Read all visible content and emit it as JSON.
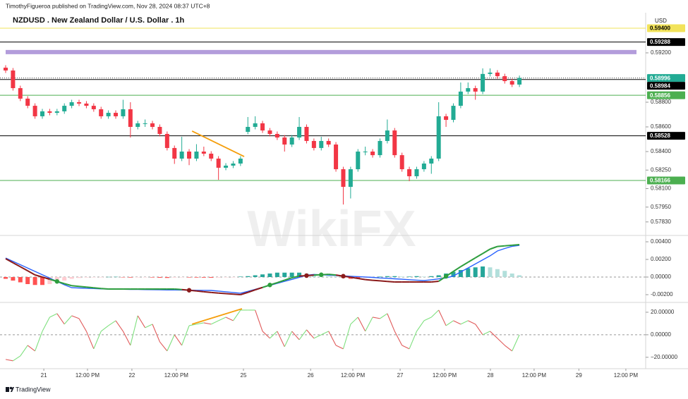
{
  "header": {
    "publisher": "TimothyFigueroa published on TradingView.com, Nov 28, 2024 08:37 UTC+8",
    "symbol": "NZDUSD . New Zealand Dollar / U.S. Dollar . 1h",
    "currency": "USD"
  },
  "footer": {
    "brand": "TradingView"
  },
  "watermark": "WikiFX",
  "chart_data": [
    {
      "type": "candlestick",
      "up_color": "#22ab94",
      "down_color": "#f23645",
      "xlim": [
        -0.77,
        87.2
      ],
      "ylim": [
        0.57726,
        0.59514
      ],
      "yticks": [
        {
          "value": 0.592,
          "label": "0.59200"
        },
        {
          "value": 0.588,
          "label": "0.58800"
        },
        {
          "value": 0.586,
          "label": "0.58600"
        },
        {
          "value": 0.584,
          "label": "0.58400"
        },
        {
          "value": 0.5825,
          "label": "0.58250"
        },
        {
          "value": 0.581,
          "label": "0.58100"
        },
        {
          "value": 0.5795,
          "label": "0.57950"
        },
        {
          "value": 0.5783,
          "label": "0.57830"
        }
      ],
      "levels": [
        {
          "value": 0.594,
          "label": "0.59400",
          "color": "#f2e35a",
          "style": "solid"
        },
        {
          "value": 0.59288,
          "label": "0.59288",
          "color": "#000000",
          "style": "solid"
        },
        {
          "value": 0.59206,
          "color": "#b39ddb",
          "style": "band"
        },
        {
          "value": 0.58996,
          "label": "0.58996",
          "color": "#22ab94",
          "style": "dotted"
        },
        {
          "value": 0.58984,
          "label": "0.58984",
          "color": "#000000",
          "style": "solid"
        },
        {
          "value": 0.58856,
          "label": "0.58856",
          "color": "#4caf50",
          "style": "solid"
        },
        {
          "value": 0.58528,
          "label": "0.58528",
          "color": "#000000",
          "style": "solid"
        },
        {
          "value": 0.58166,
          "label": "0.58166",
          "color": "#4caf50",
          "style": "solid"
        }
      ],
      "trendlines": [
        {
          "start": [
            25.4,
            0.58566
          ],
          "end": [
            32.5,
            0.5836
          ],
          "color": "#f59e0b"
        }
      ],
      "open": [
        0.5908,
        0.59057,
        0.58914,
        0.58829,
        0.58771,
        0.58686,
        0.58726,
        0.58714,
        0.58726,
        0.58771,
        0.588,
        0.58789,
        0.58771,
        0.58743,
        0.58686,
        0.58714,
        0.58686,
        0.58743,
        0.586,
        0.58629,
        0.58629,
        0.586,
        0.58543,
        0.58429,
        0.58343,
        0.584,
        0.58343,
        0.584,
        0.58383,
        0.58343,
        0.58269,
        0.58286,
        0.58303,
        0.5856,
        0.586,
        0.58629,
        0.58571,
        0.58543,
        0.58514,
        0.58457,
        0.58514,
        0.586,
        0.58486,
        0.58429,
        0.58486,
        0.58457,
        0.58257,
        0.58114,
        0.58257,
        0.584,
        0.584,
        0.58371,
        0.58486,
        0.58571,
        0.58371,
        0.58257,
        0.582,
        0.58257,
        0.58303,
        0.58343,
        0.58686,
        0.58657,
        0.58771,
        0.58886,
        0.58914,
        0.58886,
        0.59029,
        0.5904,
        0.59011,
        0.58971,
        0.58943
      ],
      "high": [
        0.591,
        0.59077,
        0.58934,
        0.58849,
        0.58791,
        0.58746,
        0.58746,
        0.58746,
        0.58791,
        0.5882,
        0.5882,
        0.58809,
        0.58791,
        0.58763,
        0.58734,
        0.58734,
        0.5882,
        0.588,
        0.58649,
        0.5866,
        0.58649,
        0.5862,
        0.58563,
        0.58449,
        0.5852,
        0.5842,
        0.5846,
        0.5844,
        0.58403,
        0.58363,
        0.58306,
        0.58323,
        0.58363,
        0.5868,
        0.58686,
        0.58649,
        0.58591,
        0.58563,
        0.58534,
        0.58534,
        0.5868,
        0.5862,
        0.58506,
        0.5852,
        0.58506,
        0.58477,
        0.58277,
        0.58277,
        0.5842,
        0.5844,
        0.5842,
        0.58506,
        0.5866,
        0.58591,
        0.58391,
        0.58277,
        0.58277,
        0.58323,
        0.58363,
        0.588,
        0.58706,
        0.58791,
        0.5896,
        0.5896,
        0.58934,
        0.59074,
        0.59074,
        0.5906,
        0.59031,
        0.58991,
        0.59016
      ],
      "low": [
        0.59037,
        0.58894,
        0.58809,
        0.58751,
        0.58666,
        0.58666,
        0.58694,
        0.58694,
        0.58706,
        0.58751,
        0.58769,
        0.58751,
        0.58723,
        0.58666,
        0.58666,
        0.58666,
        0.58666,
        0.58514,
        0.5858,
        0.586,
        0.5858,
        0.58523,
        0.58409,
        0.583,
        0.58323,
        0.5829,
        0.58323,
        0.58363,
        0.58323,
        0.58171,
        0.58249,
        0.58266,
        0.58283,
        0.5854,
        0.5858,
        0.58551,
        0.58523,
        0.58494,
        0.584,
        0.58437,
        0.58494,
        0.58466,
        0.58409,
        0.58409,
        0.58437,
        0.58237,
        0.57971,
        0.5802,
        0.58237,
        0.5837,
        0.58351,
        0.58351,
        0.58466,
        0.58351,
        0.58237,
        0.5816,
        0.5818,
        0.58237,
        0.5822,
        0.58323,
        0.586,
        0.58637,
        0.58751,
        0.58866,
        0.5882,
        0.58866,
        0.59009,
        0.58991,
        0.58951,
        0.58923,
        0.58923
      ],
      "close": [
        0.59057,
        0.58914,
        0.58829,
        0.58771,
        0.58686,
        0.58726,
        0.58714,
        0.58726,
        0.58771,
        0.588,
        0.58789,
        0.58771,
        0.58743,
        0.58686,
        0.58714,
        0.58686,
        0.58743,
        0.586,
        0.58629,
        0.58629,
        0.586,
        0.58543,
        0.58429,
        0.58343,
        0.584,
        0.58343,
        0.584,
        0.58383,
        0.58343,
        0.58269,
        0.58286,
        0.58303,
        0.58343,
        0.586,
        0.58629,
        0.58571,
        0.58543,
        0.58514,
        0.58457,
        0.58514,
        0.586,
        0.58486,
        0.58429,
        0.58486,
        0.58457,
        0.58257,
        0.58114,
        0.58257,
        0.584,
        0.584,
        0.58371,
        0.58486,
        0.58571,
        0.58371,
        0.58257,
        0.582,
        0.58257,
        0.58303,
        0.58343,
        0.58686,
        0.58657,
        0.58771,
        0.58886,
        0.58914,
        0.58886,
        0.59029,
        0.5904,
        0.59011,
        0.58971,
        0.58943,
        0.58996
      ]
    },
    {
      "type": "macd",
      "xlim": [
        -0.77,
        87.2
      ],
      "ylim": [
        -0.0028,
        0.00464
      ],
      "yticks": [
        {
          "value": 0.004,
          "label": "0.00400"
        },
        {
          "value": 0.002,
          "label": "0.00200"
        },
        {
          "value": 0,
          "label": "0.00000"
        },
        {
          "value": -0.002,
          "label": "-0.00200"
        }
      ],
      "histogram": {
        "up_color": "#26a69a",
        "up_fading_color": "#b2dfdb",
        "down_color": "#ff5252",
        "down_fading_color": "#ffcdd2",
        "values": [
          -0.0002,
          -0.0004,
          -0.0006,
          -0.0008,
          -0.0009,
          -0.0009,
          -0.0008,
          -0.0006,
          -0.0004,
          -0.0002,
          -0.0001,
          -5e-05,
          -3e-05,
          -2e-05,
          2e-05,
          3e-05,
          -3e-05,
          -6e-05,
          -4e-05,
          -3e-05,
          -5e-05,
          -8e-05,
          -0.0001,
          -6e-05,
          -4e-05,
          -5e-05,
          -6e-05,
          -7e-05,
          -8e-05,
          -6e-05,
          -4e-05,
          -3e-05,
          5e-05,
          0.0001,
          0.0002,
          0.0003,
          0.0004,
          0.0005,
          0.0005,
          0.0005,
          0.0005,
          0.0004,
          0.0003,
          0.0002,
          0.0001,
          5e-05,
          -0.0001,
          -0.0002,
          -0.0002,
          -0.0001,
          -5e-05,
          5e-05,
          0.0001,
          0.0001,
          5e-05,
          5e-05,
          0.0001,
          5e-05,
          0.0001,
          0.0002,
          0.0004,
          0.0006,
          0.0008,
          0.001,
          0.0011,
          0.0012,
          0.0011,
          0.0009,
          0.0007,
          0.0004,
          0.0002
        ]
      },
      "series": [
        {
          "color": "#2e9e3e",
          "down_color": "#8b1a1a",
          "values": [
            0.00208,
            0.00162,
            0.00117,
            0.00071,
            0.00024,
            0,
            -0.00025,
            -0.0005,
            -0.00075,
            -0.00098,
            -0.00106,
            -0.00114,
            -0.00122,
            -0.0013,
            -0.00136,
            -0.00136,
            -0.00136,
            -0.00136,
            -0.00136,
            -0.00136,
            -0.00136,
            -0.00136,
            -0.00136,
            -0.00136,
            -0.00142,
            -0.0015,
            -0.00158,
            -0.00167,
            -0.00175,
            -0.00182,
            -0.00188,
            -0.00194,
            -0.002,
            -0.00174,
            -0.00145,
            -0.00118,
            -0.0009,
            -0.00064,
            -0.00036,
            -8e-05,
            0.00011,
            0.00016,
            0.00022,
            0.00026,
            0.00031,
            0.00023,
            0.0001,
            -2e-05,
            -0.00016,
            -0.00029,
            -0.00037,
            -0.00043,
            -0.0005,
            -0.00056,
            -0.00056,
            -0.00056,
            -0.00056,
            -0.00056,
            -0.00056,
            -0.00048,
            8e-05,
            0.00064,
            0.00118,
            0.00168,
            0.00218,
            0.00267,
            0.00317,
            0.00347,
            0.00354,
            0.00361,
            0.00368
          ]
        },
        {
          "color": "#2962ff",
          "values": [
            0.00216,
            0.00178,
            0.0014,
            0.00102,
            0.00064,
            0.00026,
            -0.00012,
            -0.0005,
            -0.00088,
            -0.00121,
            -0.00124,
            -0.00127,
            -0.0013,
            -0.00134,
            -0.00136,
            -0.00138,
            -0.00138,
            -0.0014,
            -0.00141,
            -0.00142,
            -0.00143,
            -0.00144,
            -0.00146,
            -0.00146,
            -0.00147,
            -0.00149,
            -0.0015,
            -0.00151,
            -0.00152,
            -0.00159,
            -0.00167,
            -0.00175,
            -0.00183,
            -0.00162,
            -0.00139,
            -0.00117,
            -0.00094,
            -0.00072,
            -0.00049,
            -0.00026,
            -3e-05,
            0.0002,
            0.0003,
            0.00026,
            0.00022,
            0.00018,
            0.00014,
            9e-05,
            5e-05,
            1e-05,
            -4e-05,
            -0.0001,
            -0.00014,
            -0.0002,
            -0.00025,
            -0.0003,
            -0.00035,
            -0.0004,
            -0.00031,
            -0.00021,
            -0.0001,
            0.00012,
            0.00058,
            0.00103,
            0.00149,
            0.00195,
            0.00241,
            0.00296,
            0.00324,
            0.00349,
            0.0036
          ]
        }
      ]
    },
    {
      "type": "oscillator",
      "color": "#7ee07e",
      "down_color": "#e05a5a",
      "xlim": [
        -0.77,
        87.2
      ],
      "ylim": [
        -29.5,
        28.1
      ],
      "yticks": [
        {
          "value": 20,
          "label": "20.00000"
        },
        {
          "value": 0,
          "label": "0.00000"
        },
        {
          "value": -20,
          "label": "−20.00000"
        }
      ],
      "xticks": [
        {
          "value": 5.2,
          "label": "21"
        },
        {
          "value": 11.15,
          "label": "12:00 PM"
        },
        {
          "value": 17.2,
          "label": "22"
        },
        {
          "value": 23.25,
          "label": "12:00 PM"
        },
        {
          "value": 32.4,
          "label": "25"
        },
        {
          "value": 41.55,
          "label": "26"
        },
        {
          "value": 47.3,
          "label": "12:00 PM"
        },
        {
          "value": 53.75,
          "label": "27"
        },
        {
          "value": 59.8,
          "label": "12:00 PM"
        },
        {
          "value": 66.05,
          "label": "28"
        },
        {
          "value": 72.0,
          "label": "12:00 PM"
        },
        {
          "value": 78.1,
          "label": "29"
        },
        {
          "value": 84.5,
          "label": "12:00 PM"
        }
      ],
      "trendlines": [
        {
          "start": [
            25.4,
            9.4
          ],
          "end": [
            32.2,
            23.1
          ],
          "color": "#f59e0b"
        }
      ],
      "values": [
        -21.9,
        -23.1,
        -18.8,
        -9.4,
        -14.4,
        3.1,
        15.6,
        18.8,
        9.4,
        16.9,
        14.4,
        3.1,
        -12.5,
        3.1,
        8.1,
        12.5,
        3.1,
        -9.4,
        16.9,
        6.3,
        9.4,
        -6.3,
        -14.4,
        0,
        -9.4,
        8.1,
        9.4,
        10.6,
        9.4,
        12.5,
        15.6,
        12.5,
        21.9,
        21.9,
        21.9,
        3.1,
        -3.1,
        3.1,
        -10.6,
        3.1,
        -4.4,
        4.4,
        -3.1,
        0,
        3.1,
        -9.4,
        -12.5,
        9.4,
        15.6,
        3.1,
        15.6,
        14.4,
        18.8,
        3.1,
        -9.4,
        -12.5,
        3.1,
        12.5,
        15.6,
        21.9,
        8.1,
        12.5,
        9.4,
        12.5,
        9.4,
        0,
        3.1,
        -3.1,
        -9.4,
        -14.4,
        0
      ]
    }
  ]
}
